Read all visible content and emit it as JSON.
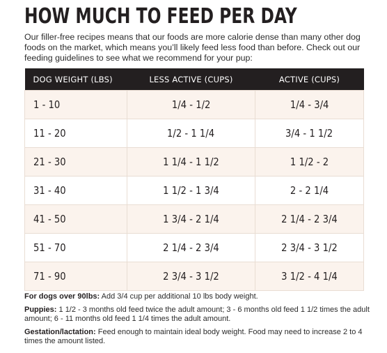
{
  "title": "HOW MUCH TO FEED PER DAY",
  "intro": "Our filler-free recipes means that our foods are more calorie dense than many other dog foods on the market, which means you’ll likely feed less food than before. Check out our feeding guidelines to see what we recommend for your pup:",
  "table": {
    "headers": [
      "DOG WEIGHT (LBS)",
      "LESS ACTIVE (CUPS)",
      "ACTIVE (CUPS)"
    ],
    "rows": [
      {
        "weight": "1 - 10",
        "less_active": "1/4 - 1/2",
        "active": "1/4 - 3/4"
      },
      {
        "weight": "11 - 20",
        "less_active": "1/2 - 1 1/4",
        "active": "3/4 - 1 1/2"
      },
      {
        "weight": "21 - 30",
        "less_active": "1 1/4 - 1 1/2",
        "active": "1 1/2 - 2"
      },
      {
        "weight": "31 - 40",
        "less_active": "1 1/2 - 1 3/4",
        "active": "2 - 2 1/4"
      },
      {
        "weight": "41 - 50",
        "less_active": "1 3/4 - 2 1/4",
        "active": "2 1/4 - 2 3/4"
      },
      {
        "weight": "51 - 70",
        "less_active": "2 1/4 - 2 3/4",
        "active": "2 3/4 - 3 1/2"
      },
      {
        "weight": "71 - 90",
        "less_active": "2 3/4 - 3 1/2",
        "active": "3 1/2 - 4 1/4"
      }
    ]
  },
  "notes": {
    "over90": {
      "label": "For dogs over 90lbs:",
      "text": "Add 3/4 cup per additional 10 lbs body weight."
    },
    "puppies": {
      "label": "Puppies:",
      "text": "1 1/2 - 3 months old feed twice the adult amount; 3 - 6 months old feed 1 1/2 times the adult amount; 6 - 11 months old feed 1 1/4 times the adult amount."
    },
    "gestation": {
      "label": "Gestation/lactation:",
      "text": "Feed enough to maintain ideal body weight. Food may need to increase 2 to 4 times the amount listed."
    }
  }
}
